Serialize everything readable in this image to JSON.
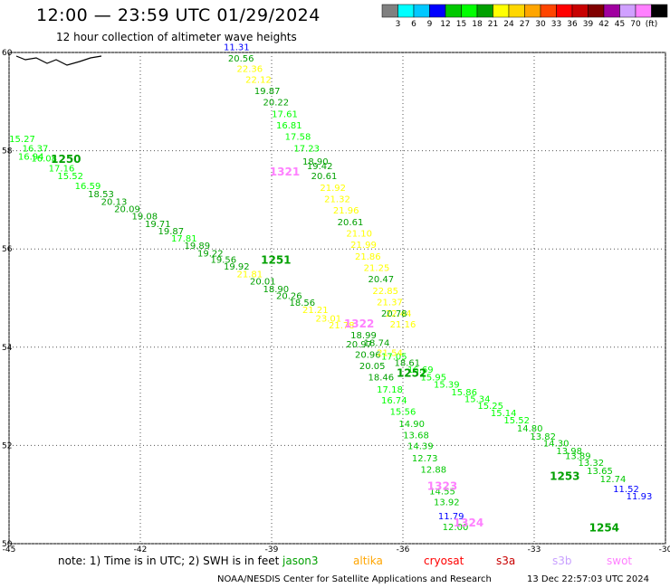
{
  "header": {
    "title": "12:00 — 23:59 UTC 01/29/2024",
    "subtitle": "12 hour collection of altimeter wave heights"
  },
  "colorbar": {
    "colors": [
      "#808080",
      "#00ffff",
      "#00c8ff",
      "#0000ff",
      "#00c800",
      "#00ff00",
      "#00a000",
      "#ffff00",
      "#ffd700",
      "#ffa500",
      "#ff4500",
      "#ff0000",
      "#c80000",
      "#800000",
      "#a000a0",
      "#d0a0ff",
      "#ff80ff",
      "#000000"
    ],
    "labels": [
      "3",
      "6",
      "9",
      "12",
      "15",
      "18",
      "21",
      "24",
      "27",
      "30",
      "33",
      "36",
      "39",
      "42",
      "45",
      "70",
      "(ft)"
    ]
  },
  "footer": {
    "note": "note:  1) Time is in UTC;  2) SWH is in feet",
    "missions": [
      {
        "name": "jason3",
        "color": "#00a000"
      },
      {
        "name": "altika",
        "color": "#ffa500"
      },
      {
        "name": "cryosat",
        "color": "#ff0000"
      },
      {
        "name": "s3a",
        "color": "#c80000"
      },
      {
        "name": "s3b",
        "color": "#c8a0ff"
      },
      {
        "name": "swot",
        "color": "#ff80ff"
      }
    ],
    "credit": "NOAA/NESDIS Center for Satellite Applications and Research",
    "timestamp": "13 Dec 22:57:03 UTC 2024"
  },
  "chart_data": {
    "type": "scatter",
    "xlim": [
      -45,
      -30
    ],
    "ylim": [
      50,
      60
    ],
    "x_ticks": [
      -45,
      -42,
      -39,
      -36,
      -33,
      -30
    ],
    "x_tick_labels": [
      "-45",
      "-42",
      "-39",
      "-36",
      "-33",
      "-30"
    ],
    "y_ticks": [
      50,
      52,
      54,
      56,
      58,
      60
    ],
    "y_tick_labels": [
      "50",
      "52",
      "54",
      "56",
      "58",
      "60"
    ],
    "grid": true,
    "passes": [
      {
        "label": "1250",
        "label_lon": -43.7,
        "label_lat": 57.75,
        "label_color": "#00a000"
      },
      {
        "label": "1251",
        "label_lon": -38.9,
        "label_lat": 55.7,
        "label_color": "#00a000"
      },
      {
        "label": "1252",
        "label_lon": -35.8,
        "label_lat": 53.4,
        "label_color": "#00a000"
      },
      {
        "label": "1253",
        "label_lon": -32.3,
        "label_lat": 51.3,
        "label_color": "#00a000"
      },
      {
        "label": "1254",
        "label_lon": -31.4,
        "label_lat": 50.25,
        "label_color": "#00a000"
      },
      {
        "label": "1321",
        "label_lon": -38.7,
        "label_lat": 57.5,
        "label_color": "#ff80ff"
      },
      {
        "label": "1322",
        "label_lon": -37.0,
        "label_lat": 54.4,
        "label_color": "#ff80ff"
      },
      {
        "label": "1323",
        "label_lon": -35.1,
        "label_lat": 51.1,
        "label_color": "#ff80ff"
      },
      {
        "label": "1324",
        "label_lon": -34.5,
        "label_lat": 50.35,
        "label_color": "#ff80ff"
      }
    ],
    "points": [
      {
        "lon": -44.7,
        "lat": 58.18,
        "v": "15.27"
      },
      {
        "lon": -44.4,
        "lat": 57.98,
        "v": "16.37"
      },
      {
        "lon": -44.5,
        "lat": 57.82,
        "v": "16.94"
      },
      {
        "lon": -44.2,
        "lat": 57.78,
        "v": "16.08"
      },
      {
        "lon": -43.8,
        "lat": 57.58,
        "v": "17.16"
      },
      {
        "lon": -43.6,
        "lat": 57.42,
        "v": "15.52"
      },
      {
        "lon": -43.2,
        "lat": 57.22,
        "v": "16.59"
      },
      {
        "lon": -42.9,
        "lat": 57.05,
        "v": "18.53"
      },
      {
        "lon": -42.6,
        "lat": 56.9,
        "v": "20.13"
      },
      {
        "lon": -42.3,
        "lat": 56.75,
        "v": "20.09"
      },
      {
        "lon": -41.9,
        "lat": 56.6,
        "v": "19.08"
      },
      {
        "lon": -41.6,
        "lat": 56.45,
        "v": "19.71"
      },
      {
        "lon": -41.3,
        "lat": 56.3,
        "v": "19.87"
      },
      {
        "lon": -41.0,
        "lat": 56.15,
        "v": "17.81"
      },
      {
        "lon": -40.7,
        "lat": 56.0,
        "v": "19.89"
      },
      {
        "lon": -40.4,
        "lat": 55.85,
        "v": "19.22"
      },
      {
        "lon": -40.1,
        "lat": 55.72,
        "v": "19.56"
      },
      {
        "lon": -39.8,
        "lat": 55.58,
        "v": "19.92"
      },
      {
        "lon": -39.5,
        "lat": 55.42,
        "v": "21.81"
      },
      {
        "lon": -39.2,
        "lat": 55.28,
        "v": "20.01"
      },
      {
        "lon": -38.9,
        "lat": 55.12,
        "v": "18.90"
      },
      {
        "lon": -38.6,
        "lat": 54.98,
        "v": "20.26"
      },
      {
        "lon": -38.3,
        "lat": 54.84,
        "v": "18.56"
      },
      {
        "lon": -38.0,
        "lat": 54.7,
        "v": "21.21"
      },
      {
        "lon": -37.7,
        "lat": 54.52,
        "v": "23.01"
      },
      {
        "lon": -37.4,
        "lat": 54.38,
        "v": "21.78"
      },
      {
        "lon": -36.9,
        "lat": 54.18,
        "v": "18.99"
      },
      {
        "lon": -36.6,
        "lat": 54.02,
        "v": "18.74"
      },
      {
        "lon": -36.2,
        "lat": 53.75,
        "v": "17.05"
      },
      {
        "lon": -35.9,
        "lat": 53.62,
        "v": "18.61"
      },
      {
        "lon": -35.6,
        "lat": 53.48,
        "v": "16.69"
      },
      {
        "lon": -35.3,
        "lat": 53.32,
        "v": "15.95"
      },
      {
        "lon": -35.0,
        "lat": 53.18,
        "v": "15.39"
      },
      {
        "lon": -34.6,
        "lat": 53.02,
        "v": "15.86"
      },
      {
        "lon": -34.3,
        "lat": 52.88,
        "v": "15.34"
      },
      {
        "lon": -34.0,
        "lat": 52.74,
        "v": "15.25"
      },
      {
        "lon": -33.7,
        "lat": 52.6,
        "v": "15.14"
      },
      {
        "lon": -33.4,
        "lat": 52.45,
        "v": "15.52"
      },
      {
        "lon": -33.1,
        "lat": 52.28,
        "v": "14.80"
      },
      {
        "lon": -32.8,
        "lat": 52.12,
        "v": "13.82"
      },
      {
        "lon": -32.5,
        "lat": 51.98,
        "v": "14.30"
      },
      {
        "lon": -32.2,
        "lat": 51.82,
        "v": "13.98"
      },
      {
        "lon": -32.0,
        "lat": 51.72,
        "v": "13.89"
      },
      {
        "lon": -31.7,
        "lat": 51.58,
        "v": "13.32"
      },
      {
        "lon": -31.5,
        "lat": 51.42,
        "v": "13.65"
      },
      {
        "lon": -31.2,
        "lat": 51.25,
        "v": "12.74"
      },
      {
        "lon": -30.9,
        "lat": 51.05,
        "v": "11.52"
      },
      {
        "lon": -30.6,
        "lat": 50.9,
        "v": "11.93"
      },
      {
        "lon": -39.8,
        "lat": 60.05,
        "v": "11.31"
      },
      {
        "lon": -39.7,
        "lat": 59.82,
        "v": "20.56"
      },
      {
        "lon": -39.5,
        "lat": 59.6,
        "v": "22.36"
      },
      {
        "lon": -39.3,
        "lat": 59.38,
        "v": "22.12"
      },
      {
        "lon": -39.1,
        "lat": 59.15,
        "v": "19.87"
      },
      {
        "lon": -38.9,
        "lat": 58.92,
        "v": "20.22"
      },
      {
        "lon": -38.7,
        "lat": 58.68,
        "v": "17.61"
      },
      {
        "lon": -38.6,
        "lat": 58.45,
        "v": "16.81"
      },
      {
        "lon": -38.4,
        "lat": 58.22,
        "v": "17.58"
      },
      {
        "lon": -38.2,
        "lat": 57.98,
        "v": "17.23"
      },
      {
        "lon": -38.0,
        "lat": 57.72,
        "v": "18.90"
      },
      {
        "lon": -37.9,
        "lat": 57.62,
        "v": "19.42"
      },
      {
        "lon": -37.8,
        "lat": 57.42,
        "v": "20.61"
      },
      {
        "lon": -37.6,
        "lat": 57.18,
        "v": "21.92"
      },
      {
        "lon": -37.5,
        "lat": 56.95,
        "v": "21.32"
      },
      {
        "lon": -37.3,
        "lat": 56.72,
        "v": "21.96"
      },
      {
        "lon": -37.2,
        "lat": 56.48,
        "v": "20.61"
      },
      {
        "lon": -37.0,
        "lat": 56.25,
        "v": "21.10"
      },
      {
        "lon": -36.9,
        "lat": 56.02,
        "v": "21.99"
      },
      {
        "lon": -36.8,
        "lat": 55.78,
        "v": "21.86"
      },
      {
        "lon": -36.6,
        "lat": 55.55,
        "v": "21.25"
      },
      {
        "lon": -36.5,
        "lat": 55.32,
        "v": "20.47"
      },
      {
        "lon": -36.4,
        "lat": 55.08,
        "v": "22.85"
      },
      {
        "lon": -36.3,
        "lat": 54.85,
        "v": "21.37"
      },
      {
        "lon": -36.1,
        "lat": 54.62,
        "v": "22.44"
      },
      {
        "lon": -36.0,
        "lat": 54.4,
        "v": "21.16"
      },
      {
        "lon": -36.2,
        "lat": 54.62,
        "v": "20.78"
      },
      {
        "lon": -37.0,
        "lat": 54.0,
        "v": "20.97"
      },
      {
        "lon": -36.8,
        "lat": 53.78,
        "v": "20.96"
      },
      {
        "lon": -36.3,
        "lat": 53.82,
        "v": "21.54"
      },
      {
        "lon": -36.7,
        "lat": 53.55,
        "v": "20.05"
      },
      {
        "lon": -36.5,
        "lat": 53.32,
        "v": "18.46"
      },
      {
        "lon": -36.3,
        "lat": 53.08,
        "v": "17.18"
      },
      {
        "lon": -36.2,
        "lat": 52.85,
        "v": "16.74"
      },
      {
        "lon": -36.0,
        "lat": 52.62,
        "v": "15.56"
      },
      {
        "lon": -35.8,
        "lat": 52.38,
        "v": "14.90"
      },
      {
        "lon": -35.7,
        "lat": 52.15,
        "v": "13.68"
      },
      {
        "lon": -35.6,
        "lat": 51.92,
        "v": "14.39"
      },
      {
        "lon": -35.5,
        "lat": 51.68,
        "v": "12.73"
      },
      {
        "lon": -35.3,
        "lat": 51.45,
        "v": "12.88"
      },
      {
        "lon": -35.1,
        "lat": 51.0,
        "v": "14.55"
      },
      {
        "lon": -35.0,
        "lat": 50.78,
        "v": "13.92"
      },
      {
        "lon": -34.9,
        "lat": 50.5,
        "v": "11.79"
      },
      {
        "lon": -34.8,
        "lat": 50.28,
        "v": "12.00"
      }
    ]
  }
}
